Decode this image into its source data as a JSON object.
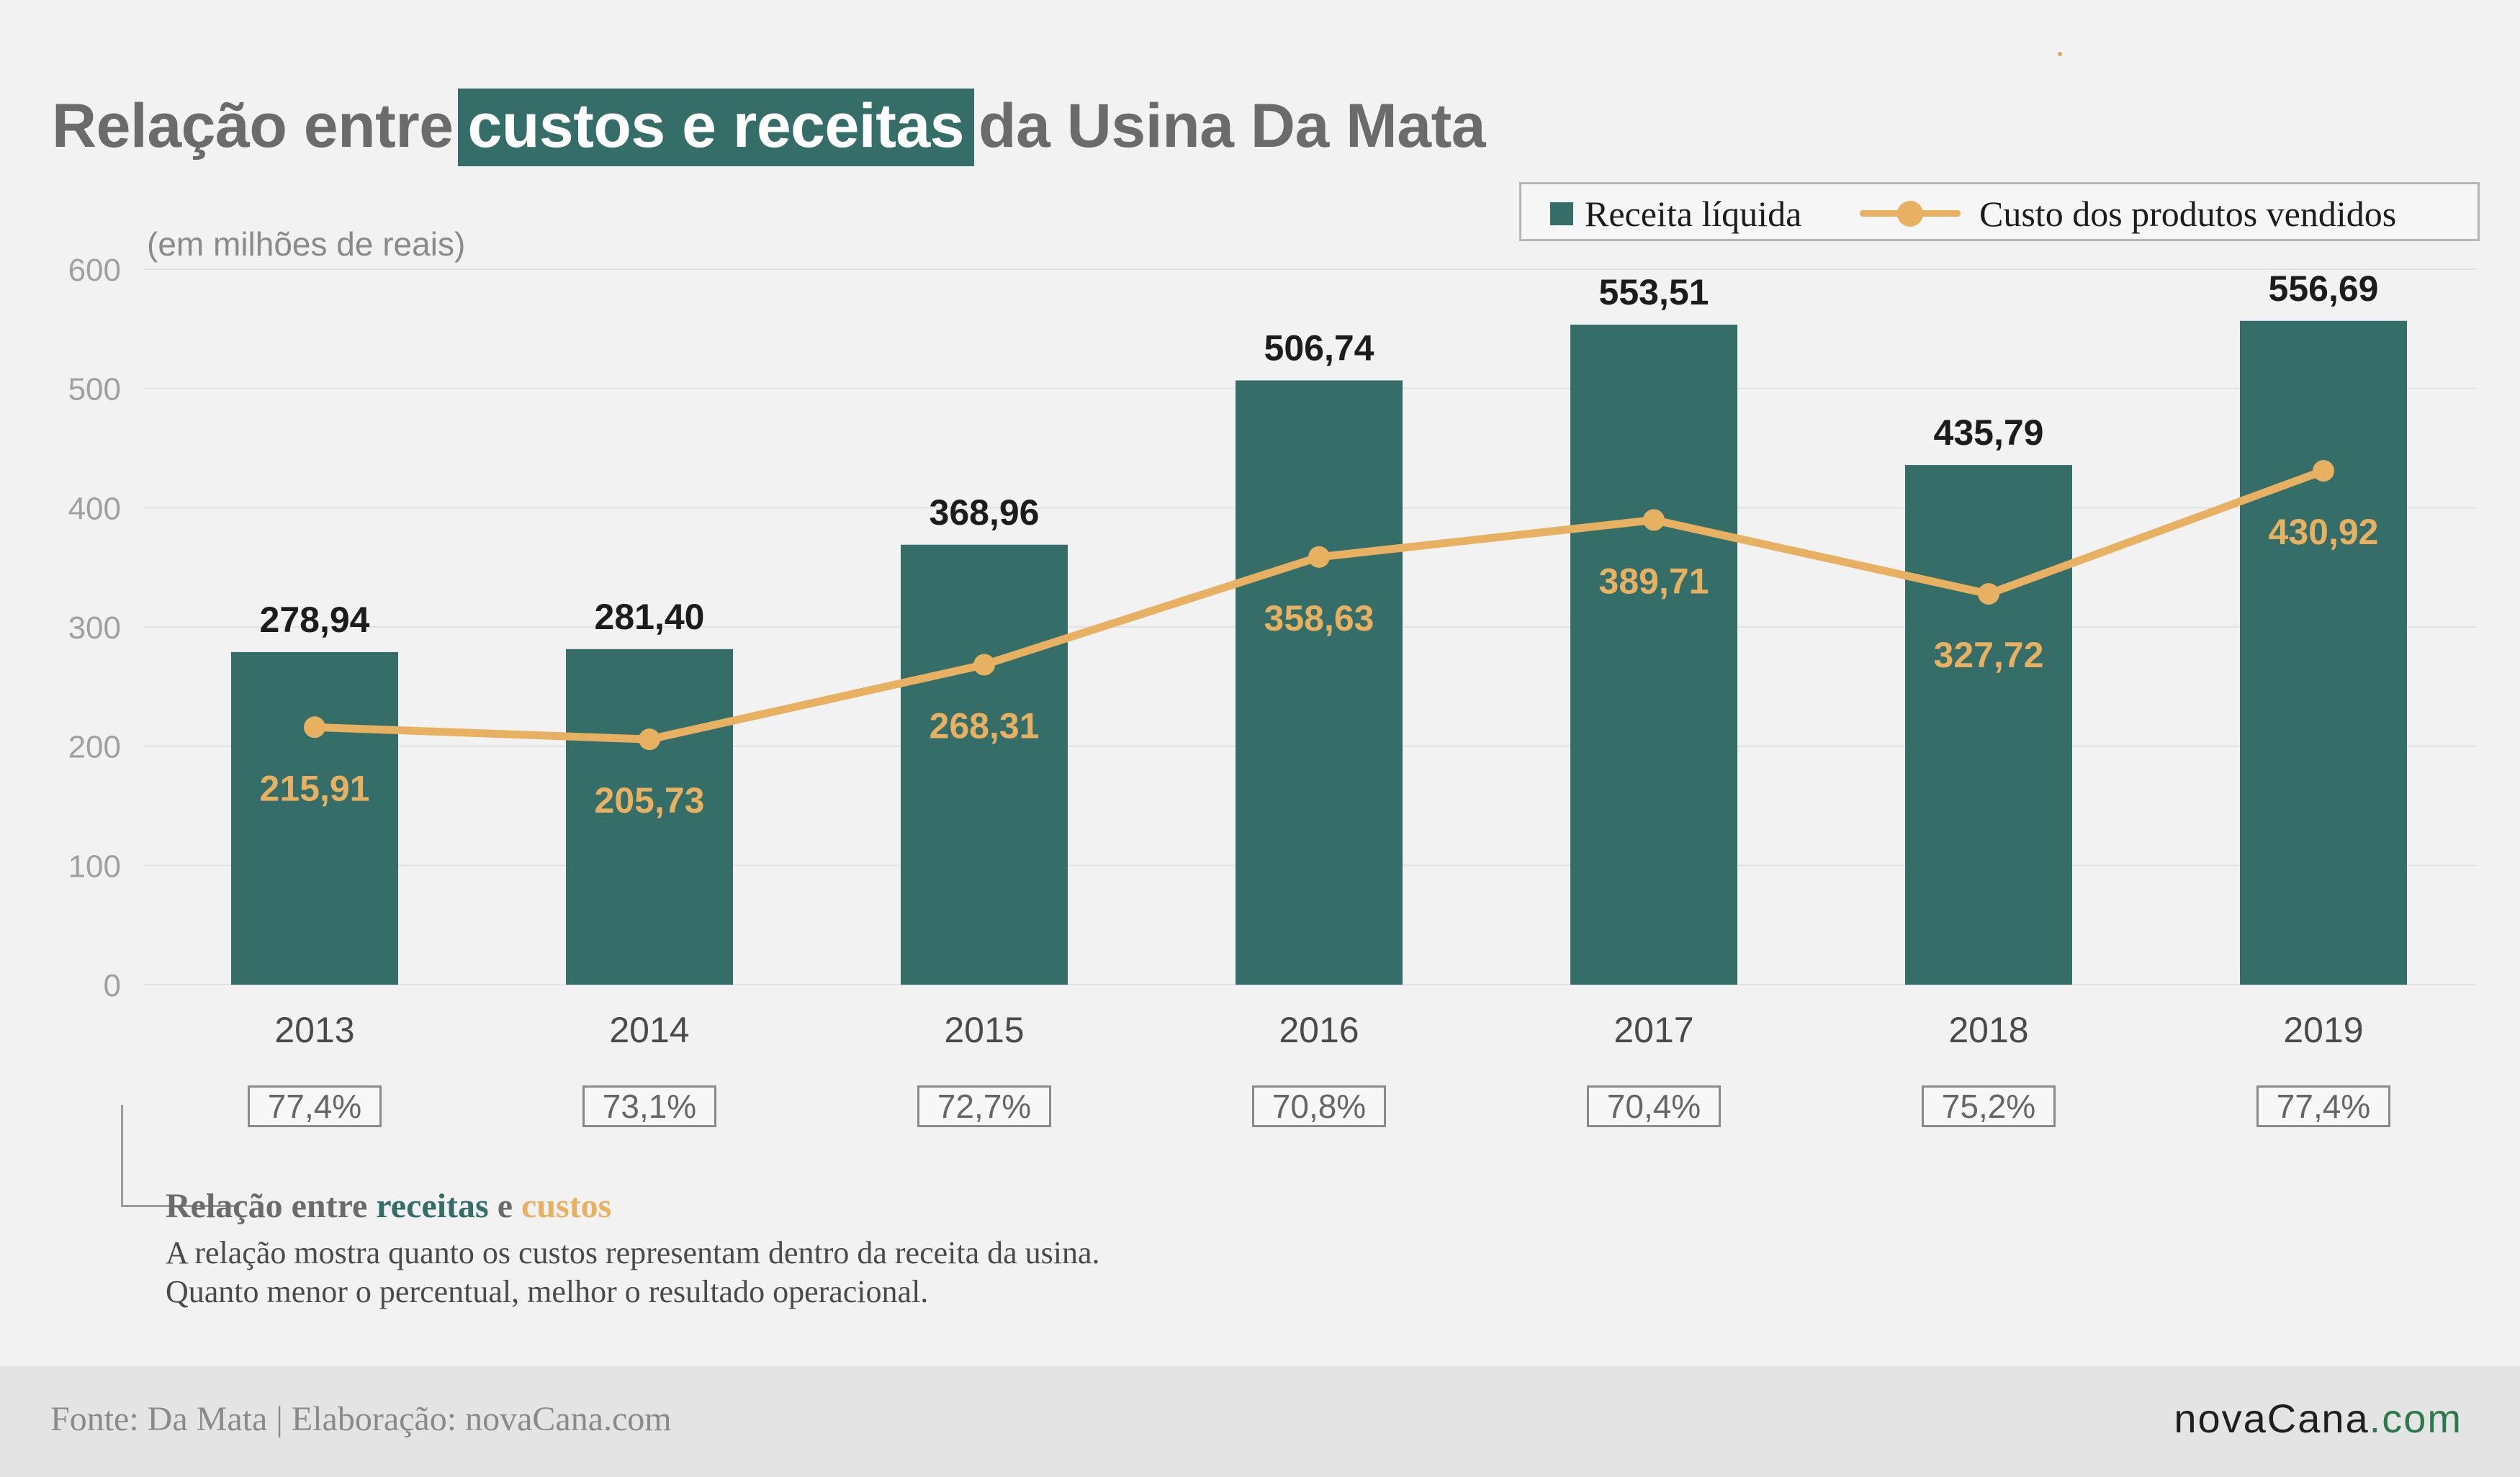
{
  "title": {
    "before": "Relação entre",
    "highlight": "custos e receitas",
    "after": "da Usina Da Mata"
  },
  "unit_label": "(em milhões de reais)",
  "legend": {
    "bar_label": "Receita líquida",
    "line_label": "Custo dos produtos vendidos"
  },
  "colors": {
    "bar": "#356e68",
    "line": "#e8b061",
    "axis_text": "#a0a0a0",
    "value_text": "#1c1c1c"
  },
  "chart_data": {
    "type": "bar",
    "categories": [
      "2013",
      "2014",
      "2015",
      "2016",
      "2017",
      "2018",
      "2019"
    ],
    "series": [
      {
        "name": "Receita líquida",
        "type": "bar",
        "values": [
          278.94,
          281.4,
          368.96,
          506.74,
          553.51,
          435.79,
          556.69
        ],
        "labels": [
          "278,94",
          "281,40",
          "368,96",
          "506,74",
          "553,51",
          "435,79",
          "556,69"
        ]
      },
      {
        "name": "Custo dos produtos vendidos",
        "type": "line",
        "values": [
          215.91,
          205.73,
          268.31,
          358.63,
          389.71,
          327.72,
          430.92
        ],
        "labels": [
          "215,91",
          "205,73",
          "268,31",
          "358,63",
          "389,71",
          "327,72",
          "430,92"
        ]
      }
    ],
    "yticks": [
      "0",
      "100",
      "200",
      "300",
      "400",
      "500",
      "600"
    ],
    "ylim": [
      0,
      600
    ],
    "grid": true,
    "legend_position": "top-right"
  },
  "ratios": [
    "77,4%",
    "73,1%",
    "72,7%",
    "70,8%",
    "70,4%",
    "75,2%",
    "77,4%"
  ],
  "note": {
    "head_prefix": "Relação entre",
    "head_green": "receitas",
    "head_mid": "e",
    "head_orange": "custos",
    "line1": "A relação mostra quanto os custos representam dentro da receita da usina.",
    "line2": "Quanto menor o percentual, melhor o resultado operacional."
  },
  "footer": {
    "source": "Fonte: Da Mata | Elaboração: novaCana.com",
    "brand_main": "novaCana",
    "brand_tld": ".com"
  }
}
